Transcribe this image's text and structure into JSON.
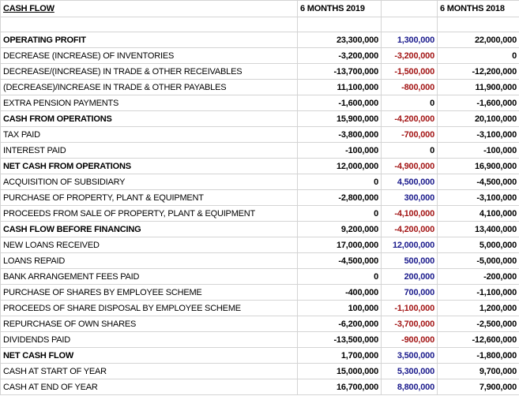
{
  "header": {
    "title": "CASH FLOW",
    "col_2019": "6 MONTHS 2019",
    "col_2018": "6 MONTHS 2018"
  },
  "table": {
    "rows": [
      {
        "label": "OPERATING PROFIT",
        "y2019": "23,300,000",
        "change": "1,300,000",
        "y2018": "22,000,000",
        "bold": true
      },
      {
        "label": "DECREASE (INCREASE) OF INVENTORIES",
        "y2019": "-3,200,000",
        "change": "-3,200,000",
        "y2018": "0"
      },
      {
        "label": "DECREASE/(INCREASE) IN TRADE & OTHER RECEIVABLES",
        "y2019": "-13,700,000",
        "change": "-1,500,000",
        "y2018": "-12,200,000"
      },
      {
        "label": "(DECREASE)/INCREASE IN TRADE & OTHER PAYABLES",
        "y2019": "11,100,000",
        "change": "-800,000",
        "y2018": "11,900,000"
      },
      {
        "label": "EXTRA PENSION PAYMENTS",
        "y2019": "-1,600,000",
        "change": "0",
        "y2018": "-1,600,000"
      },
      {
        "label": "CASH FROM OPERATIONS",
        "y2019": "15,900,000",
        "change": "-4,200,000",
        "y2018": "20,100,000",
        "bold": true
      },
      {
        "label": "TAX PAID",
        "y2019": "-3,800,000",
        "change": "-700,000",
        "y2018": "-3,100,000"
      },
      {
        "label": "INTEREST PAID",
        "y2019": "-100,000",
        "change": "0",
        "y2018": "-100,000"
      },
      {
        "label": "NET CASH FROM OPERATIONS",
        "y2019": "12,000,000",
        "change": "-4,900,000",
        "y2018": "16,900,000",
        "bold": true
      },
      {
        "label": "ACQUISITION OF SUBSIDIARY",
        "y2019": "0",
        "change": "4,500,000",
        "y2018": "-4,500,000"
      },
      {
        "label": "PURCHASE OF PROPERTY, PLANT & EQUIPMENT",
        "y2019": "-2,800,000",
        "change": "300,000",
        "y2018": "-3,100,000"
      },
      {
        "label": "PROCEEDS FROM SALE OF PROPERTY, PLANT & EQUIPMENT",
        "y2019": "0",
        "change": "-4,100,000",
        "y2018": "4,100,000"
      },
      {
        "label": "CASH FLOW BEFORE FINANCING",
        "y2019": "9,200,000",
        "change": "-4,200,000",
        "y2018": "13,400,000",
        "bold": true
      },
      {
        "label": "NEW LOANS RECEIVED",
        "y2019": "17,000,000",
        "change": "12,000,000",
        "y2018": "5,000,000"
      },
      {
        "label": "LOANS REPAID",
        "y2019": "-4,500,000",
        "change": "500,000",
        "y2018": "-5,000,000"
      },
      {
        "label": "BANK ARRANGEMENT FEES PAID",
        "y2019": "0",
        "change": "200,000",
        "y2018": "-200,000"
      },
      {
        "label": "PURCHASE OF SHARES BY EMPLOYEE SCHEME",
        "y2019": "-400,000",
        "change": "700,000",
        "y2018": "-1,100,000"
      },
      {
        "label": "PROCEEDS OF SHARE DISPOSAL BY EMPLOYEE SCHEME",
        "y2019": "100,000",
        "change": "-1,100,000",
        "y2018": "1,200,000"
      },
      {
        "label": "REPURCHASE OF OWN SHARES",
        "y2019": "-6,200,000",
        "change": "-3,700,000",
        "y2018": "-2,500,000"
      },
      {
        "label": "DIVIDENDS PAID",
        "y2019": "-13,500,000",
        "change": "-900,000",
        "y2018": "-12,600,000"
      },
      {
        "label": "NET CASH FLOW",
        "y2019": "1,700,000",
        "change": "3,500,000",
        "y2018": "-1,800,000",
        "bold": true
      },
      {
        "label": "CASH AT START OF YEAR",
        "y2019": "15,000,000",
        "change": "5,300,000",
        "y2018": "9,700,000"
      },
      {
        "label": "CASH AT END OF YEAR",
        "y2019": "16,700,000",
        "change": "8,800,000",
        "y2018": "7,900,000"
      }
    ]
  }
}
